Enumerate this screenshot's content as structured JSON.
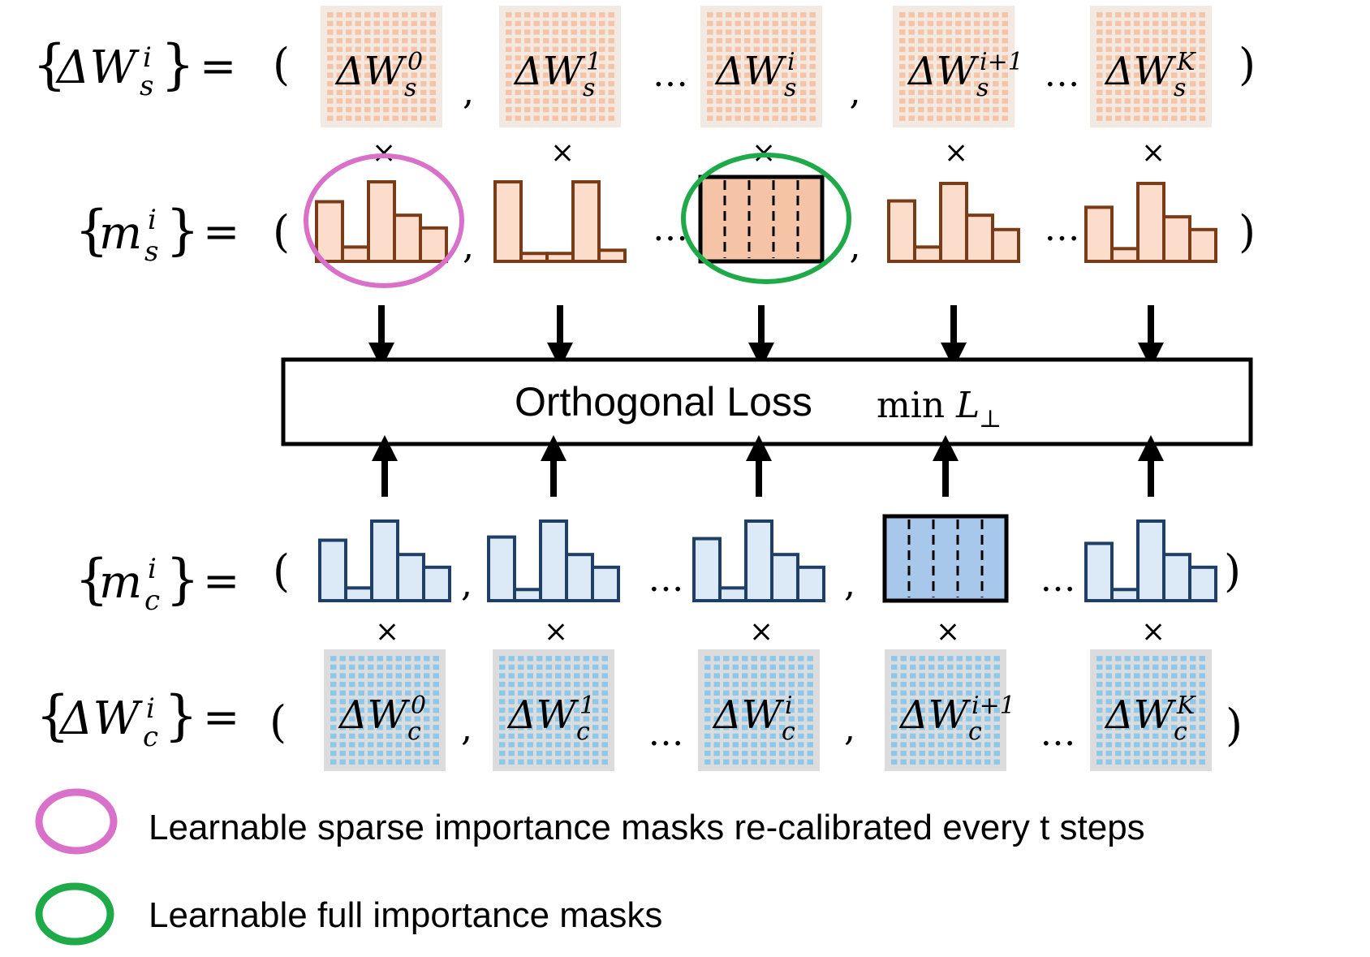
{
  "rows": {
    "ws": {
      "set_label": {
        "open": "{",
        "sym": "ΔW",
        "sub": "s",
        "sup": "i",
        "close": "}",
        "eq": "="
      },
      "open_paren": "(",
      "close_paren": ")",
      "items": [
        {
          "sym": "ΔW",
          "sub": "s",
          "sup": "0"
        },
        {
          "sym": "ΔW",
          "sub": "s",
          "sup": "1"
        },
        {
          "sym": "ΔW",
          "sub": "s",
          "sup": "i"
        },
        {
          "sym": "ΔW",
          "sub": "s",
          "sup": "i+1"
        },
        {
          "sym": "ΔW",
          "sub": "s",
          "sup": "K"
        }
      ],
      "separators": [
        ",",
        "…",
        ",",
        "…"
      ]
    },
    "ms": {
      "set_label": {
        "open": "{",
        "sym": "m",
        "sub": "s",
        "sup": "i",
        "close": "}",
        "eq": "="
      },
      "open_paren": "(",
      "close_paren": ")",
      "separators": [
        ",",
        "…",
        ",",
        "…"
      ],
      "masks": [
        {
          "kind": "sparse",
          "heights": [
            0.75,
            0.18,
            1.0,
            0.58,
            0.42
          ],
          "highlight": "sparse"
        },
        {
          "kind": "sparse",
          "heights": [
            1.0,
            0.1,
            0.1,
            1.0,
            0.14
          ],
          "highlight": ""
        },
        {
          "kind": "full",
          "highlight": "full"
        },
        {
          "kind": "sparse",
          "heights": [
            0.76,
            0.18,
            0.98,
            0.58,
            0.4
          ],
          "highlight": ""
        },
        {
          "kind": "sparse",
          "heights": [
            0.68,
            0.16,
            0.98,
            0.56,
            0.4
          ],
          "highlight": ""
        }
      ]
    },
    "mc": {
      "set_label": {
        "open": "{",
        "sym": "m",
        "sub": "c",
        "sup": "i",
        "close": "}",
        "eq": "="
      },
      "open_paren": "(",
      "close_paren": ")",
      "separators": [
        ",",
        "…",
        ",",
        "…"
      ],
      "masks": [
        {
          "kind": "sparse",
          "heights": [
            0.76,
            0.16,
            1.0,
            0.58,
            0.42
          ]
        },
        {
          "kind": "sparse",
          "heights": [
            0.8,
            0.14,
            1.0,
            0.58,
            0.42
          ]
        },
        {
          "kind": "sparse",
          "heights": [
            0.78,
            0.16,
            1.0,
            0.58,
            0.42
          ]
        },
        {
          "kind": "full"
        },
        {
          "kind": "sparse",
          "heights": [
            0.72,
            0.14,
            1.0,
            0.58,
            0.42
          ]
        }
      ]
    },
    "wc": {
      "set_label": {
        "open": "{",
        "sym": "ΔW",
        "sub": "c",
        "sup": "i",
        "close": "}",
        "eq": "="
      },
      "open_paren": "(",
      "close_paren": ")",
      "items": [
        {
          "sym": "ΔW",
          "sub": "c",
          "sup": "0"
        },
        {
          "sym": "ΔW",
          "sub": "c",
          "sup": "1"
        },
        {
          "sym": "ΔW",
          "sub": "c",
          "sup": "i"
        },
        {
          "sym": "ΔW",
          "sub": "c",
          "sup": "i+1"
        },
        {
          "sym": "ΔW",
          "sub": "c",
          "sup": "K"
        }
      ],
      "separators": [
        ",",
        "…",
        ",",
        "…"
      ]
    }
  },
  "multiply_symbol": "×",
  "loss_box": {
    "label": "Orthogonal Loss",
    "formula_min": "min",
    "formula_var": "L",
    "formula_sub": "⊥"
  },
  "legend": [
    {
      "color": "#d970c9",
      "label": "Learnable sparse importance masks re-calibrated every t steps"
    },
    {
      "color": "#1faa4a",
      "label": "Learnable full importance masks"
    }
  ],
  "colors": {
    "style_fill": "#fcdccb",
    "style_stroke": "#7a3b17",
    "style_full_fill": "#f5c3a5",
    "content_fill": "#dce9f7",
    "content_stroke": "#1f3f66",
    "content_full_fill": "#a7c8ea",
    "style_grid_bg": "#f2e9e3",
    "style_grid_cell": "#f6c3a4",
    "content_grid_bg": "#dcdcdc",
    "content_grid_cell": "#8cc8ec",
    "highlight_sparse": "#d970c9",
    "highlight_full": "#1faa4a"
  }
}
